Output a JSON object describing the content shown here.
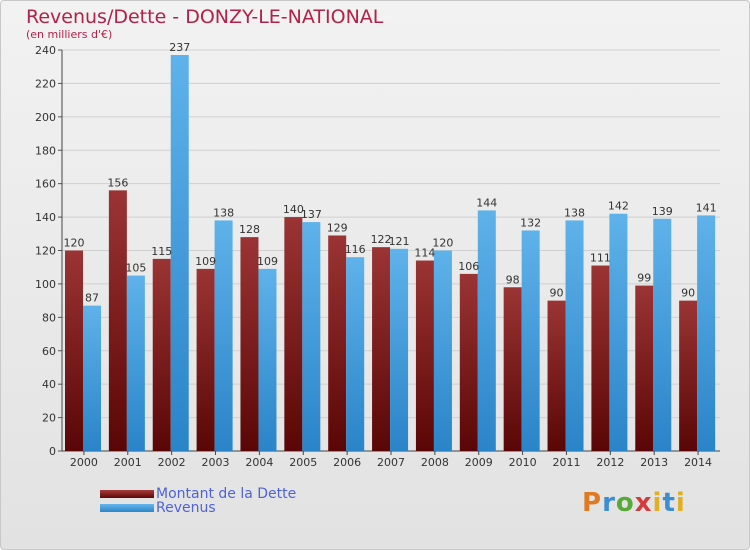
{
  "title": "Revenus/Dette - DONZY-LE-NATIONAL",
  "subtitle": "(en milliers d'€)",
  "legend": {
    "debt": "Montant de la Dette",
    "revenue": "Revenus"
  },
  "logo": "Proxiti",
  "colors": {
    "debt": "#7a1717",
    "revenue": "#3d9ee0",
    "title": "#b0224a",
    "legend_text": "#5063d4"
  },
  "chart_data": {
    "type": "bar",
    "title": "Revenus/Dette - DONZY-LE-NATIONAL",
    "ylabel": "(en milliers d'€)",
    "ylim": [
      0,
      240
    ],
    "yticks": [
      0,
      20,
      40,
      60,
      80,
      100,
      120,
      140,
      160,
      180,
      200,
      220,
      240
    ],
    "grid": true,
    "legend_position": "bottom-left",
    "categories": [
      "2000",
      "2001",
      "2002",
      "2003",
      "2004",
      "2005",
      "2006",
      "2007",
      "2008",
      "2009",
      "2010",
      "2011",
      "2012",
      "2013",
      "2014"
    ],
    "series": [
      {
        "name": "Montant de la Dette",
        "values": [
          120,
          156,
          115,
          109,
          128,
          140,
          129,
          122,
          114,
          106,
          98,
          90,
          111,
          99,
          90
        ]
      },
      {
        "name": "Revenus",
        "values": [
          87,
          105,
          237,
          138,
          109,
          137,
          116,
          121,
          120,
          144,
          132,
          138,
          142,
          139,
          141
        ]
      }
    ]
  }
}
